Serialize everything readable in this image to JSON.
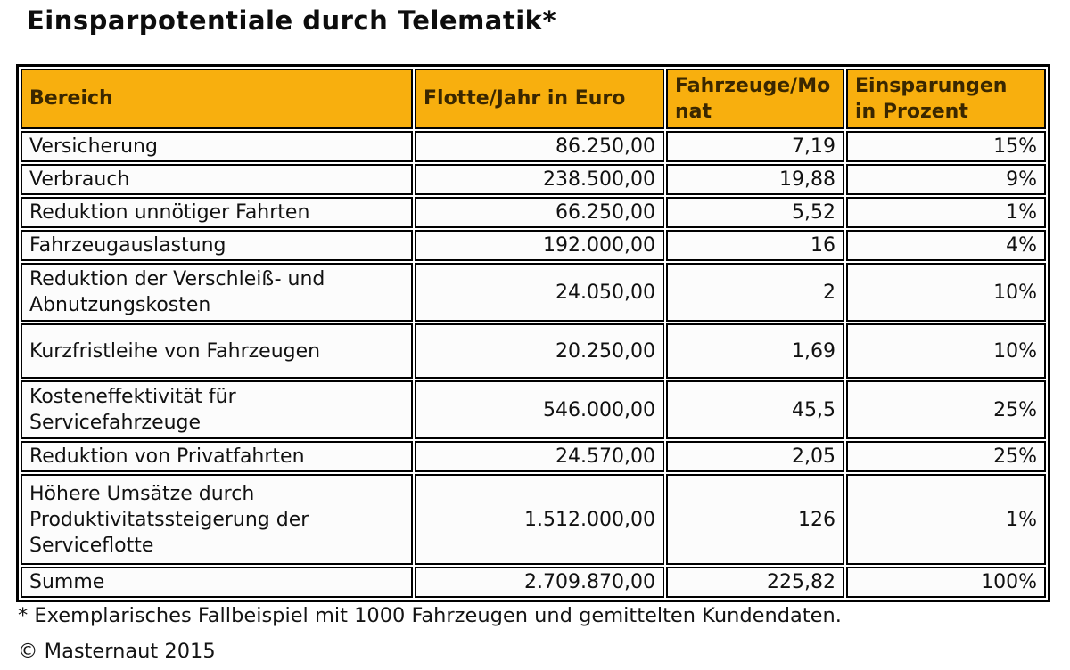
{
  "title": "Einsparpotentiale durch Telematik*",
  "colors": {
    "header_bg": "#F8AF0E",
    "header_text": "#3A2700",
    "border": "#000000"
  },
  "table": {
    "columns": [
      {
        "label": "Bereich"
      },
      {
        "label": "Flotte/Jahr in Euro"
      },
      {
        "label": "Fahrzeuge/Mo\nnat"
      },
      {
        "label": "Einsparungen\nin Prozent"
      }
    ],
    "rows": [
      {
        "bereich": "Versicherung",
        "flotte": "86.250,00",
        "fahrzeuge": "7,19",
        "einsparungen": "15%"
      },
      {
        "bereich": "Verbrauch",
        "flotte": "238.500,00",
        "fahrzeuge": "19,88",
        "einsparungen": "9%"
      },
      {
        "bereich": "Reduktion unnötiger Fahrten",
        "flotte": "66.250,00",
        "fahrzeuge": "5,52",
        "einsparungen": "1%"
      },
      {
        "bereich": "Fahrzeugauslastung",
        "flotte": "192.000,00",
        "fahrzeuge": "16",
        "einsparungen": "4%"
      },
      {
        "bereich": "Reduktion der Verschleiß- und Abnutzungskosten",
        "flotte": "24.050,00",
        "fahrzeuge": "2",
        "einsparungen": "10%"
      },
      {
        "bereich": "Kurzfristleihe von Fahrzeugen",
        "flotte": "20.250,00",
        "fahrzeuge": "1,69",
        "einsparungen": "10%"
      },
      {
        "bereich": "Kosteneffektivität für Servicefahrzeuge",
        "flotte": "546.000,00",
        "fahrzeuge": "45,5",
        "einsparungen": "25%"
      },
      {
        "bereich": "Reduktion von Privatfahrten",
        "flotte": "24.570,00",
        "fahrzeuge": "2,05",
        "einsparungen": "25%"
      },
      {
        "bereich": "Höhere Umsätze durch Produktivitatssteigerung der Serviceflotte",
        "flotte": "1.512.000,00",
        "fahrzeuge": "126",
        "einsparungen": "1%"
      }
    ],
    "summary": {
      "bereich": "Summe",
      "flotte": "2.709.870,00",
      "fahrzeuge": "225,82",
      "einsparungen": "100%"
    }
  },
  "footnote": "* Exemplarisches Fallbeispiel mit 1000 Fahrzeugen und gemittelten Kundendaten.",
  "copyright": "© Masternaut 2015"
}
